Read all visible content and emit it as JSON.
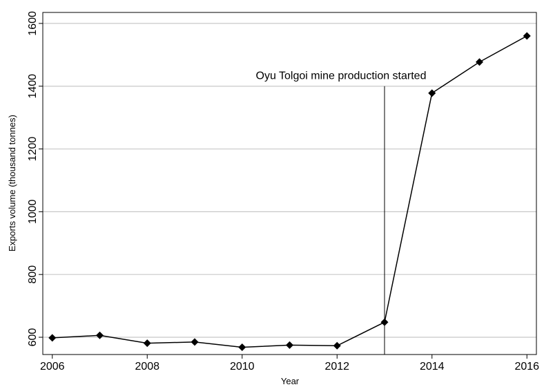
{
  "chart_data": {
    "type": "line",
    "x_label": "Year",
    "y_label": "Exports volume (thousand tonnes)",
    "x": [
      2006,
      2007,
      2008,
      2009,
      2010,
      2011,
      2012,
      2013,
      2014,
      2015,
      2016
    ],
    "series": [
      {
        "name": "Exports volume",
        "color": "#000000",
        "values": [
          598,
          606,
          581,
          585,
          568,
          575,
          573,
          648,
          1378,
          1477,
          1560
        ]
      }
    ],
    "xlim": [
      2005.8,
      2016.2
    ],
    "xticks": [
      2006,
      2008,
      2010,
      2012,
      2014,
      2016
    ],
    "ylim": [
      545,
      1635
    ],
    "yticks": [
      600,
      800,
      1000,
      1200,
      1400,
      1600
    ],
    "grid": true,
    "annotations": [
      {
        "x": 2013,
        "y": 1400,
        "text": "Oyu Tolgoi mine production started"
      }
    ]
  }
}
